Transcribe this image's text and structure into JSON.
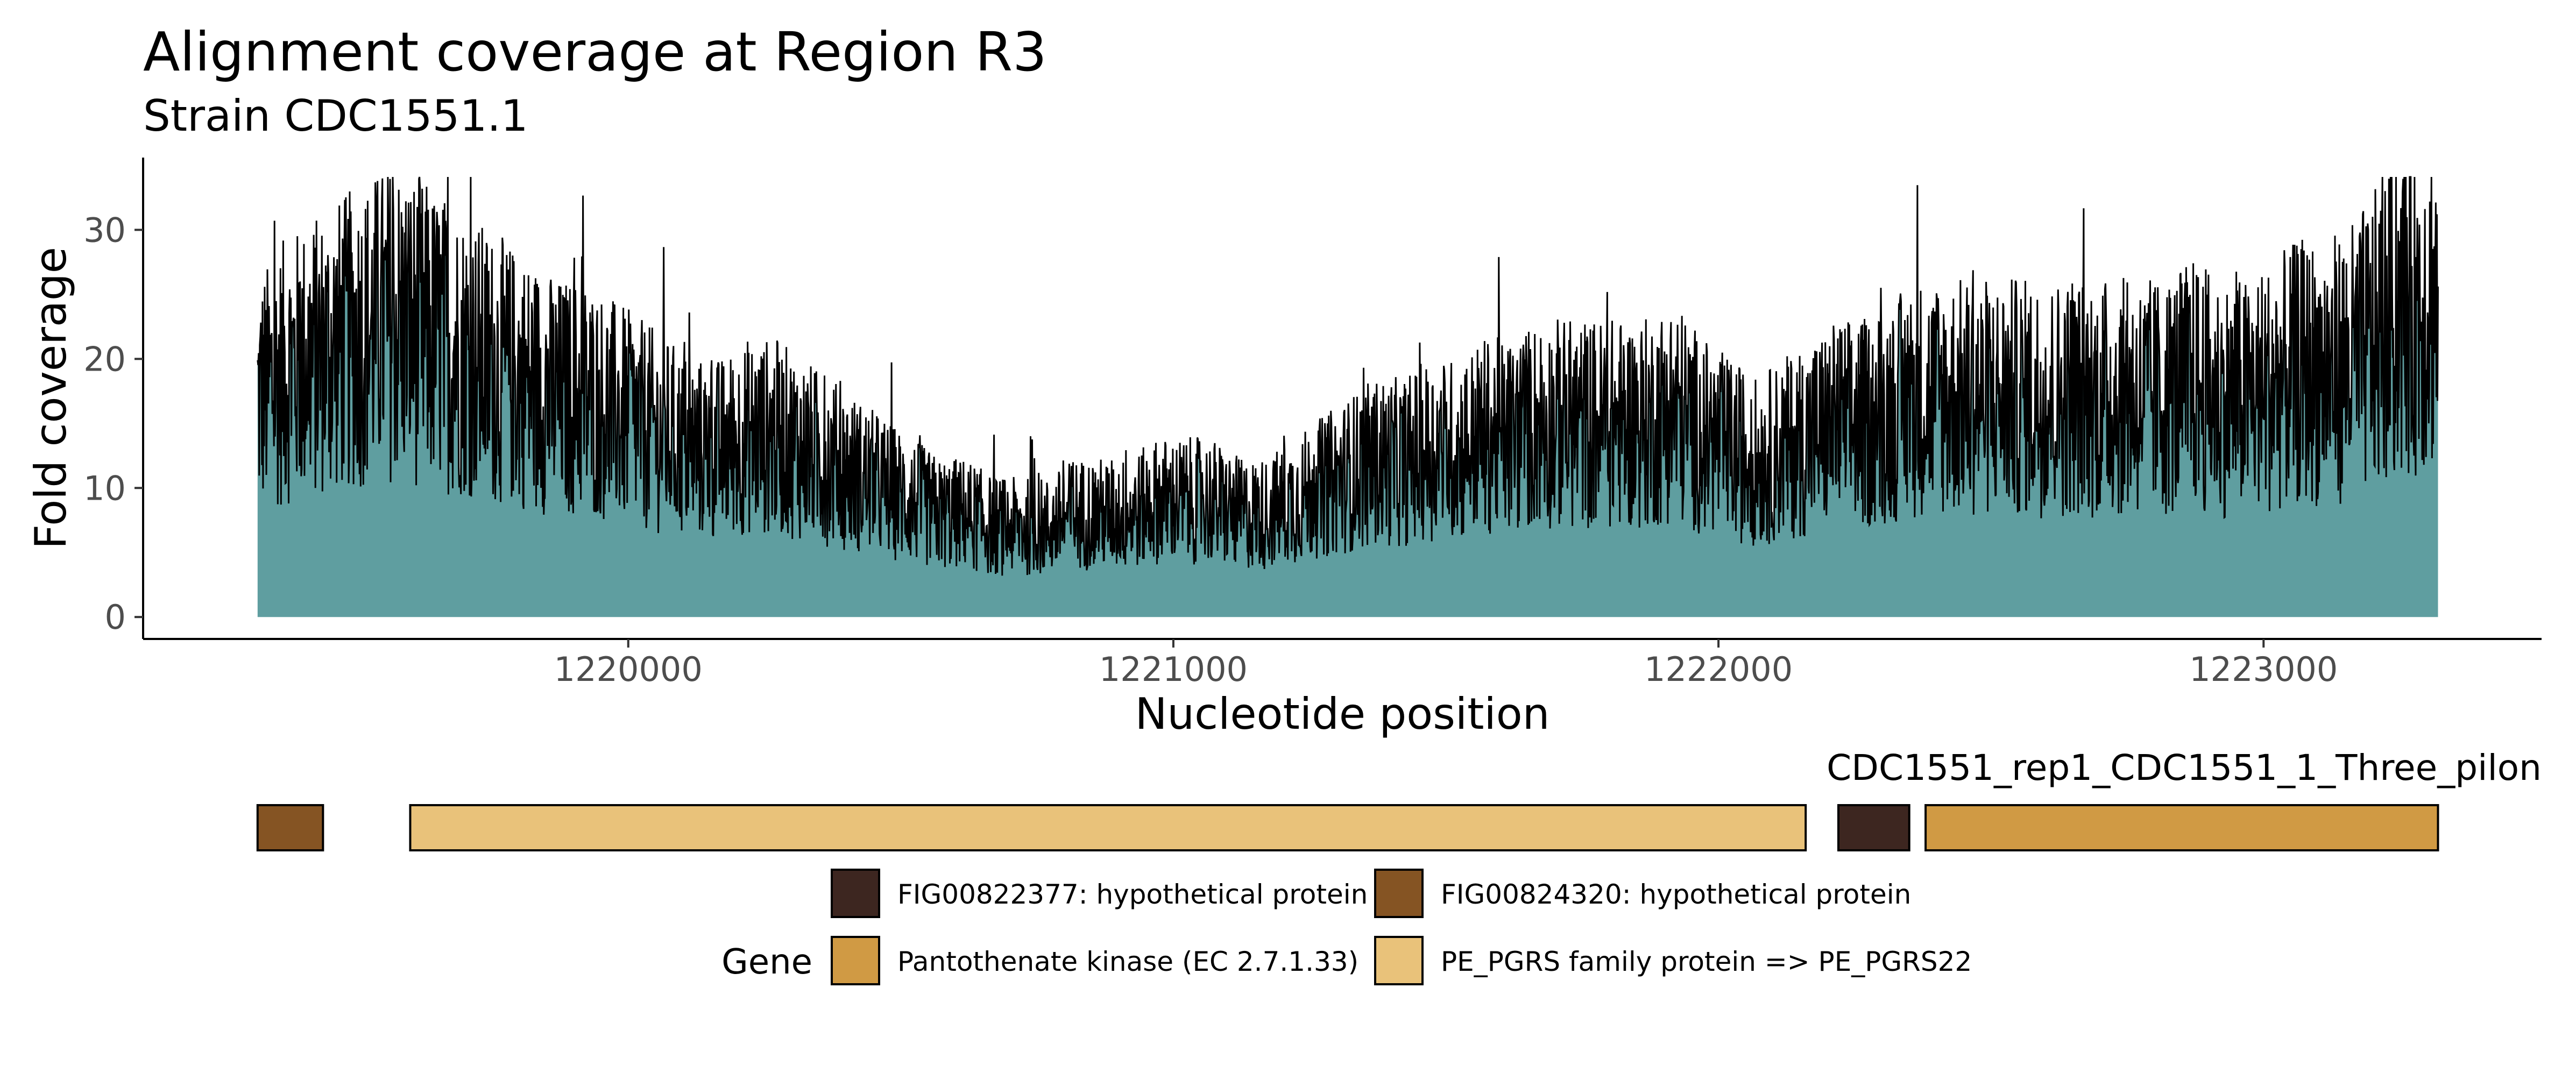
{
  "chart_data": {
    "type": "area",
    "title": "Alignment coverage at Region R3",
    "subtitle": "Strain CDC1551.1",
    "xlabel": "Nucleotide position",
    "ylabel": "Fold coverage",
    "xlim": [
      1219110,
      1223510
    ],
    "ylim": [
      -1.7,
      35.6
    ],
    "x_ticks": [
      1220000,
      1221000,
      1222000,
      1223000
    ],
    "y_ticks": [
      0,
      10,
      20,
      30
    ],
    "grid": false,
    "fill_color": "#5f9ea0",
    "line_color": "#000000",
    "series": [
      {
        "x": [
          1219320,
          1219370,
          1219420,
          1219470,
          1219520,
          1219570,
          1219620,
          1219670,
          1219720,
          1219770,
          1219820,
          1219870,
          1219920,
          1219970,
          1220020,
          1220070,
          1220120,
          1220170,
          1220220,
          1220270,
          1220320,
          1220370,
          1220420,
          1220470,
          1220520,
          1220570,
          1220620,
          1220670,
          1220720,
          1220770,
          1220820,
          1220870,
          1220920,
          1220970,
          1221020,
          1221070,
          1221120,
          1221170,
          1221220,
          1221270,
          1221320,
          1221370,
          1221420,
          1221470,
          1221520,
          1221570,
          1221620,
          1221670,
          1221720,
          1221770,
          1221820,
          1221870,
          1221920,
          1221970,
          1222020,
          1222070,
          1222120,
          1222170,
          1222220,
          1222270,
          1222320,
          1222370,
          1222420,
          1222470,
          1222520,
          1222570,
          1222620,
          1222670,
          1222720,
          1222770,
          1222820,
          1222870,
          1222920,
          1222970,
          1223020,
          1223070,
          1223120,
          1223170,
          1223220,
          1223270,
          1223320
        ],
        "values": [
          17,
          19,
          20,
          21,
          22,
          23,
          22,
          21,
          20,
          19,
          18,
          17,
          17,
          16,
          15,
          14,
          13,
          13,
          14,
          14,
          13,
          12,
          11,
          10,
          9,
          8,
          8,
          7,
          7,
          7,
          8,
          8,
          8,
          9,
          9,
          9,
          8,
          8,
          9,
          10,
          11,
          12,
          12,
          13,
          13,
          14,
          14,
          15,
          15,
          15,
          15,
          15,
          16,
          14,
          13,
          12,
          13,
          14,
          15,
          15,
          16,
          17,
          17,
          17,
          17,
          17,
          17,
          17,
          17,
          17,
          17,
          18,
          17,
          17,
          18,
          19,
          19,
          20,
          22,
          24,
          25
        ]
      }
    ]
  },
  "gene_track": {
    "label": "CDC1551_rep1_CDC1551_1_Three_pilon",
    "genes": [
      {
        "start": 1219320,
        "end": 1219440,
        "product": "FIG00824320: hypothetical protein"
      },
      {
        "start": 1219600,
        "end": 1222160,
        "product": "PE_PGRS family protein => PE_PGRS22"
      },
      {
        "start": 1222220,
        "end": 1222350,
        "product": "FIG00822377: hypothetical protein"
      },
      {
        "start": 1222380,
        "end": 1223320,
        "product": "Pantothenate kinase (EC 2.7.1.33)"
      }
    ]
  },
  "legend": {
    "title": "Gene",
    "items": [
      {
        "label": "FIG00822377: hypothetical protein",
        "color": "#3d2620"
      },
      {
        "label": "FIG00824320: hypothetical protein",
        "color": "#855423"
      },
      {
        "label": "Pantothenate kinase (EC 2.7.1.33)",
        "color": "#d09a44"
      },
      {
        "label": "PE_PGRS family protein => PE_PGRS22",
        "color": "#e9c27a"
      }
    ]
  }
}
